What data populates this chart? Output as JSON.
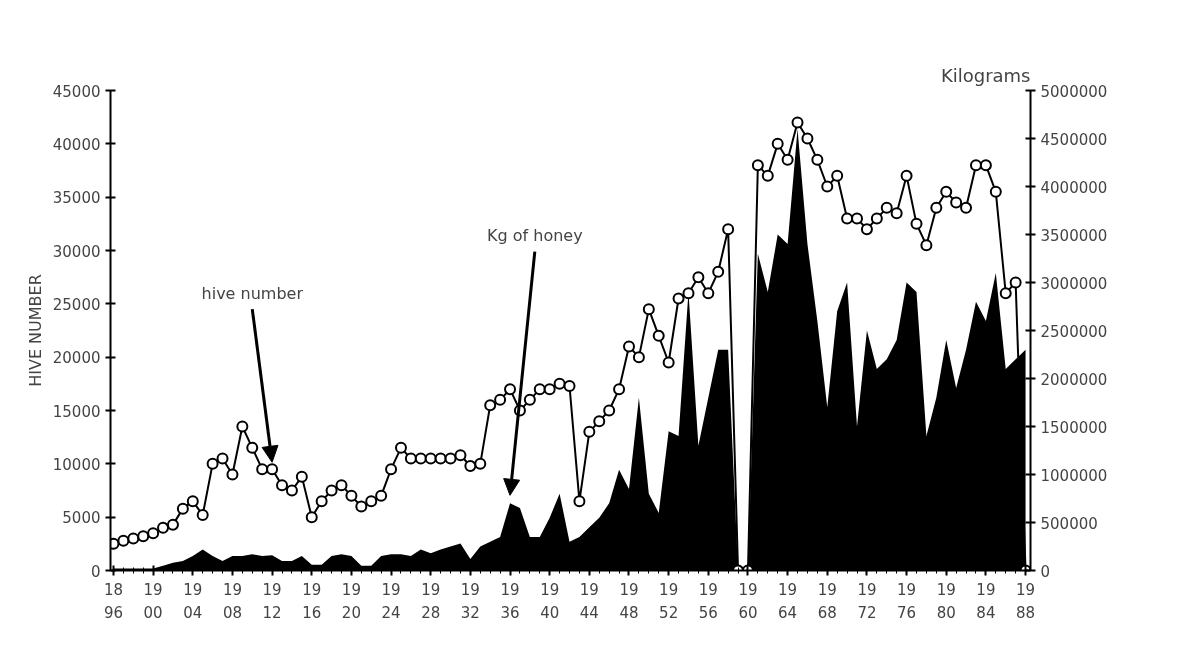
{
  "chart_data": {
    "type": "line",
    "ylabel": "HIVE NUMBER",
    "y2label": "Kilograms",
    "categories": [
      "18\n96",
      null,
      null,
      null,
      "19\n00",
      null,
      null,
      null,
      "19\n04",
      null,
      null,
      null,
      "19\n08",
      null,
      null,
      null,
      "19\n12",
      null,
      null,
      null,
      "19\n16",
      null,
      null,
      null,
      "19\n20",
      null,
      null,
      null,
      "19\n24",
      null,
      null,
      null,
      "19\n28",
      null,
      null,
      null,
      "19\n32",
      null,
      null,
      null,
      "19\n36",
      null,
      null,
      null,
      "19\n40",
      null,
      null,
      null,
      "19\n44",
      null,
      null,
      null,
      "19\n48",
      null,
      null,
      null,
      "19\n52",
      null,
      null,
      null,
      "19\n56",
      null,
      null,
      null,
      "19\n60",
      null,
      null,
      null,
      "19\n64",
      null,
      null,
      null,
      "19\n68",
      null,
      null,
      null,
      "19\n72",
      null,
      null,
      null,
      "19\n76",
      null,
      null,
      null,
      "19\n80",
      null,
      null,
      null,
      "19\n84",
      null,
      null,
      null,
      "19\n88"
    ],
    "series": [
      {
        "type": "area",
        "axis": "y2",
        "color": "#000000",
        "values": [
          20000,
          20000,
          20000,
          20000,
          20000,
          50000,
          80000,
          100000,
          150000,
          220000,
          150000,
          100000,
          150000,
          150000,
          170000,
          150000,
          160000,
          100000,
          100000,
          150000,
          60000,
          60000,
          150000,
          170000,
          150000,
          50000,
          50000,
          150000,
          170000,
          170000,
          150000,
          220000,
          180000,
          220000,
          250000,
          280000,
          120000,
          250000,
          300000,
          350000,
          700000,
          650000,
          350000,
          350000,
          550000,
          800000,
          300000,
          350000,
          450000,
          550000,
          700000,
          1050000,
          850000,
          1800000,
          800000,
          600000,
          1450000,
          1400000,
          2900000,
          1300000,
          1800000,
          2300000,
          2300000,
          0,
          0,
          3300000,
          2900000,
          3500000,
          3400000,
          4600000,
          3400000,
          2600000,
          1700000,
          2700000,
          3000000,
          1500000,
          2500000,
          2100000,
          2200000,
          2400000,
          3000000,
          2900000,
          1400000,
          1800000,
          2400000,
          1900000,
          2300000,
          2800000,
          2600000,
          3100000,
          2100000,
          2200000,
          2300000
        ]
      },
      {
        "axis": "y",
        "color": "#000000",
        "marker": "circle",
        "values": [
          2500,
          2800,
          3000,
          3200,
          3500,
          4000,
          4300,
          5800,
          6500,
          5200,
          10000,
          10500,
          9000,
          13500,
          11500,
          9500,
          9500,
          8000,
          7500,
          8800,
          5000,
          6500,
          7500,
          8000,
          7000,
          6000,
          6500,
          7000,
          9500,
          11500,
          10500,
          10500,
          10500,
          10500,
          10500,
          10800,
          9800,
          10000,
          15500,
          16000,
          17000,
          15000,
          16000,
          17000,
          17000,
          17500,
          17300,
          6500,
          13000,
          14000,
          15000,
          17000,
          21000,
          20000,
          24500,
          22000,
          19500,
          25500,
          26000,
          27500,
          26000,
          28000,
          32000,
          0,
          0,
          38000,
          37000,
          40000,
          38500,
          42000,
          40500,
          38500,
          36000,
          37000,
          33000,
          33000,
          32000,
          33000,
          34000,
          33500,
          37000,
          32500,
          30500,
          34000,
          35500,
          34500,
          34000,
          38000,
          38000,
          35500,
          26000,
          27000,
          0
        ]
      }
    ],
    "ylim": [
      0,
      45000
    ],
    "yticks": [
      0,
      5000,
      10000,
      15000,
      20000,
      25000,
      30000,
      35000,
      40000,
      45000
    ],
    "y2lim": [
      0,
      5000000
    ],
    "y2ticks": [
      0,
      500000,
      1000000,
      1500000,
      2000000,
      2500000,
      3000000,
      3500000,
      4000000,
      4500000,
      5000000
    ],
    "annotations": [
      {
        "text": "hive number",
        "x": "19\n12",
        "y": 9500
      },
      {
        "text": "Kg of honey",
        "x": "19\n36",
        "y": 6400
      }
    ],
    "grid": false
  }
}
